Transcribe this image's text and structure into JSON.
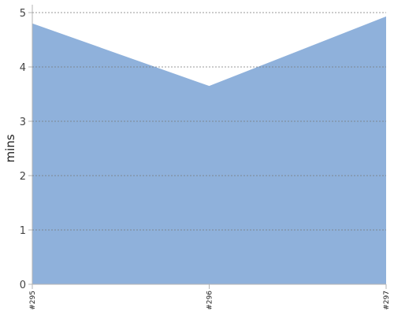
{
  "chart_data": {
    "type": "area",
    "categories": [
      "#295",
      "#296",
      "#297"
    ],
    "series": [
      {
        "values": [
          4.8,
          3.65,
          4.93
        ]
      }
    ],
    "ylabel": "mins",
    "xlabel": "",
    "ylim": [
      0,
      5
    ],
    "yticks": [
      0,
      1,
      2,
      3,
      4,
      5
    ],
    "grid": true,
    "fill_color": "#8fb1db"
  }
}
